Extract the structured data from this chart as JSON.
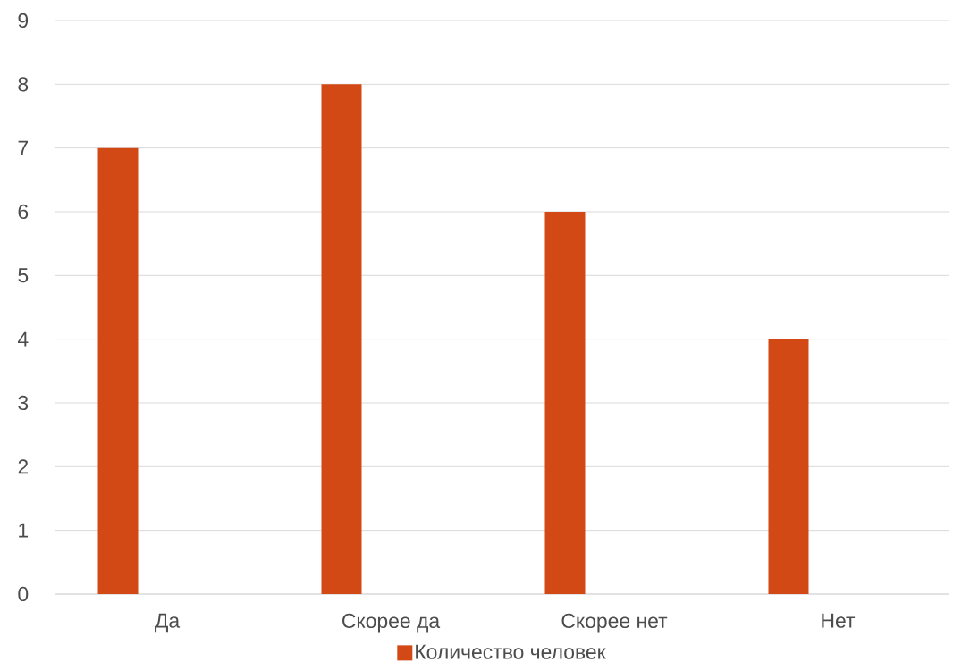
{
  "chart_data": {
    "type": "bar",
    "categories": [
      "Да",
      "Скорее да",
      "Скорее нет",
      "Нет"
    ],
    "series": [
      {
        "name": "Количество человек",
        "color": "#d34916",
        "values": [
          7,
          8,
          6,
          4
        ]
      }
    ],
    "ylim": [
      0,
      9
    ],
    "yticks": [
      0,
      1,
      2,
      3,
      4,
      5,
      6,
      7,
      8,
      9
    ],
    "grid": "y",
    "legend": "bottom"
  }
}
